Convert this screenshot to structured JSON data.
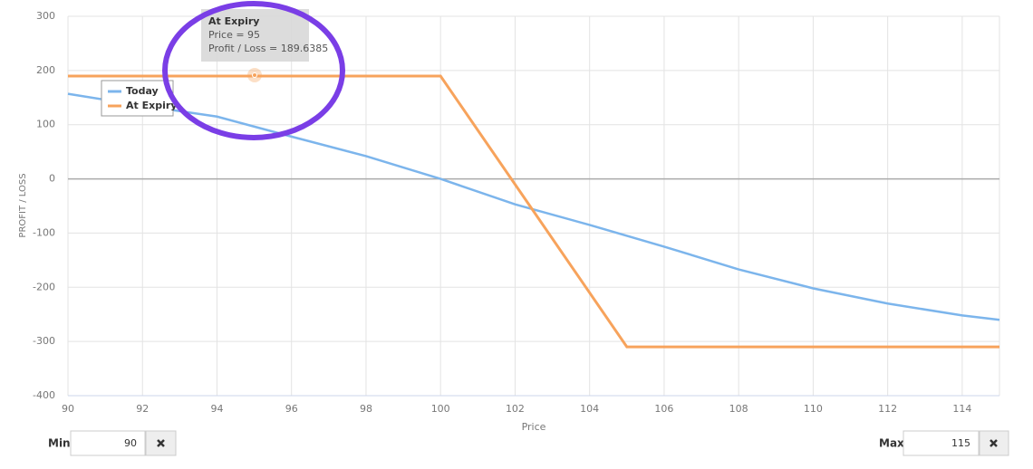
{
  "chart_data": {
    "type": "line",
    "xlabel": "Price",
    "ylabel": "PROFIT / LOSS",
    "xlim": [
      90,
      115
    ],
    "xticks": [
      90,
      92,
      94,
      96,
      98,
      100,
      102,
      104,
      106,
      108,
      110,
      112,
      114
    ],
    "ylim": [
      -400,
      300
    ],
    "yticks": [
      -400,
      -300,
      -200,
      -100,
      0,
      100,
      200,
      300
    ],
    "grid": true,
    "legend": "upper left",
    "series": [
      {
        "name": "Today",
        "color": "#7cb5ec",
        "x": [
          90,
          92,
          94,
          96,
          98,
          100,
          102,
          104,
          106,
          108,
          110,
          112,
          114,
          115
        ],
        "values": [
          157,
          135,
          115,
          78,
          42,
          0,
          -47,
          -85,
          -125,
          -167,
          -202,
          -230,
          -252,
          -260
        ]
      },
      {
        "name": "At Expiry",
        "color": "#f7a35c",
        "x": [
          90,
          100,
          105,
          115
        ],
        "values": [
          189.6385,
          189.6385,
          -310,
          -310
        ]
      }
    ],
    "tooltip": {
      "title": "At Expiry",
      "lines": [
        "Price = 95",
        "Profit / Loss = 189.6385"
      ]
    }
  },
  "controls": {
    "min": {
      "label": "Min",
      "value": 90
    },
    "max": {
      "label": "Max",
      "value": 115
    }
  }
}
